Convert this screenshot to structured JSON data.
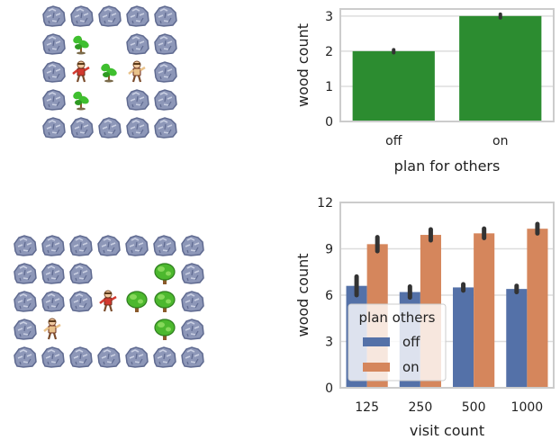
{
  "gridworlds": [
    {
      "rows": [
        [
          "rock",
          "rock",
          "rock",
          "rock",
          "rock"
        ],
        [
          "rock",
          "sapling",
          "",
          "rock",
          "rock"
        ],
        [
          "rock",
          "agent-red",
          "sapling",
          "agent-tan",
          "rock"
        ],
        [
          "rock",
          "sapling",
          "",
          "rock",
          "rock"
        ],
        [
          "rock",
          "rock",
          "rock",
          "rock",
          "rock"
        ]
      ]
    },
    {
      "rows": [
        [
          "rock",
          "rock",
          "rock",
          "rock",
          "rock",
          "rock",
          "rock"
        ],
        [
          "rock",
          "rock",
          "rock",
          "",
          "",
          "tree",
          "rock"
        ],
        [
          "rock",
          "rock",
          "rock",
          "agent-red",
          "tree",
          "tree",
          "rock"
        ],
        [
          "rock",
          "agent-tan",
          "",
          "",
          "",
          "tree",
          "rock"
        ],
        [
          "rock",
          "rock",
          "rock",
          "rock",
          "rock",
          "rock",
          "rock"
        ]
      ]
    }
  ],
  "colors": {
    "rock": "#8d97b8",
    "rock_dark": "#5f6a90",
    "rock_light": "#c9cfe2",
    "sapling": "#3fbf2f",
    "tree": "#4cb82e",
    "trunk": "#8a5a2b",
    "agent_red": "#d2392f",
    "agent_tan": "#e9c28a",
    "blue": "#5471a8",
    "orange": "#d5865c",
    "green": "#2c8c30",
    "grid": "#dddddd",
    "spine": "#cccccc"
  },
  "chart_data": [
    {
      "type": "bar",
      "categories": [
        "off",
        "on"
      ],
      "values": [
        2,
        3
      ],
      "errors": [
        0.04,
        0.05
      ],
      "xlabel": "plan for others",
      "ylabel": "wood count",
      "ylim": [
        0,
        3.2
      ],
      "yticks": [
        0,
        1,
        2,
        3
      ],
      "grid": true,
      "color": "#2c8c30"
    },
    {
      "type": "bar",
      "categories": [
        "125",
        "250",
        "500",
        "1000"
      ],
      "series": [
        {
          "name": "off",
          "values": [
            6.6,
            6.2,
            6.5,
            6.4
          ],
          "errors": [
            0.6,
            0.35,
            0.2,
            0.2
          ]
        },
        {
          "name": "on",
          "values": [
            9.3,
            9.9,
            10.0,
            10.3
          ],
          "errors": [
            0.45,
            0.35,
            0.3,
            0.3
          ]
        }
      ],
      "xlabel": "visit count",
      "ylabel": "wood count",
      "ylim": [
        0,
        12
      ],
      "yticks": [
        0,
        3,
        6,
        9,
        12
      ],
      "grid": true,
      "legend": {
        "title": "plan others",
        "location": "lower-left"
      }
    }
  ]
}
